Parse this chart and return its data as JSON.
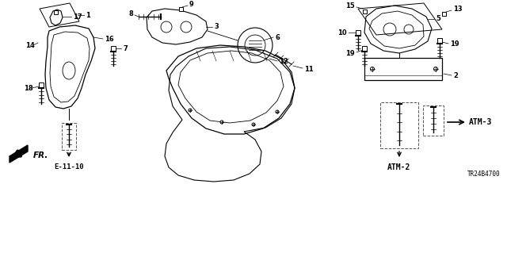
{
  "title": "",
  "background_color": "#ffffff",
  "labels": {
    "fr_arrow": "FR.",
    "bottom_left_ref": "E-11-10",
    "bottom_right_ref1": "ATM-2",
    "bottom_right_ref2": "ATM-3",
    "diagram_code": "TR24B4700"
  },
  "colors": {
    "line": "#000000",
    "background": "#ffffff",
    "text": "#000000",
    "dashed": "#555555"
  }
}
